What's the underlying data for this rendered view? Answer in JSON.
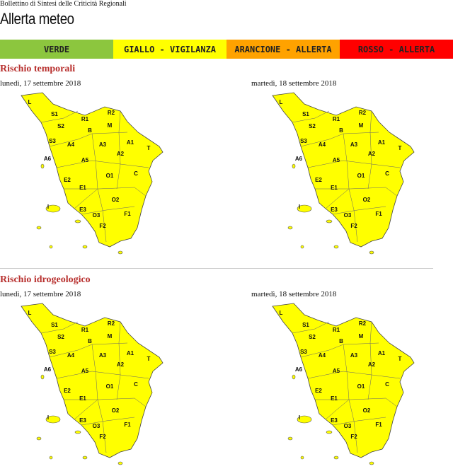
{
  "header": {
    "subtitle": "Bollettino di Sintesi delle Criticità Regionali",
    "title": "Allerta meteo"
  },
  "legend": [
    "VERDE",
    "GIALLO - VIGILANZA",
    "ARANCIONE - ALLERTA",
    "ROSSO - ALLERTA"
  ],
  "zones": [
    "L",
    "S1",
    "R1",
    "R2",
    "S2",
    "B",
    "M",
    "S3",
    "A4",
    "A3",
    "A1",
    "T",
    "A6",
    "A5",
    "A2",
    "E2",
    "O1",
    "C",
    "E1",
    "I",
    "O2",
    "E3",
    "O3",
    "F1",
    "F2"
  ],
  "sections": [
    {
      "title": "Rischio temporali",
      "maps": [
        {
          "date": "lunedì, 17 settembre 2018"
        },
        {
          "date": "martedì, 18 settembre 2018"
        }
      ]
    },
    {
      "title": "Rischio idrogeologico",
      "maps": [
        {
          "date": "lunedì, 17 settembre 2018"
        },
        {
          "date": "martedì, 18 settembre 2018"
        }
      ]
    }
  ]
}
